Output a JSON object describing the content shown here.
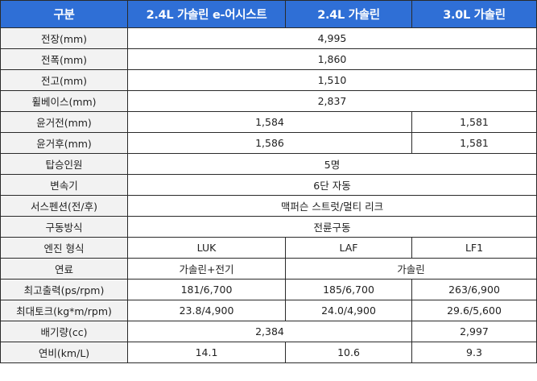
{
  "header": [
    "구분",
    "2.4L 가솔린 e-어시스트",
    "2.4L 가솔린",
    "3.0L 가솔린"
  ],
  "rows": [
    {
      "label": "전장(mm)",
      "cells": [
        {
          "text": "4,995",
          "span": 3
        }
      ]
    },
    {
      "label": "전폭(mm)",
      "cells": [
        {
          "text": "1,860",
          "span": 3
        }
      ]
    },
    {
      "label": "전고(mm)",
      "cells": [
        {
          "text": "1,510",
          "span": 3
        }
      ]
    },
    {
      "label": "휠베이스(mm)",
      "cells": [
        {
          "text": "2,837",
          "span": 3
        }
      ]
    },
    {
      "label": "윤거전(mm)",
      "cells": [
        {
          "text": "1,584",
          "span": 2
        },
        {
          "text": "1,581",
          "span": 1
        }
      ]
    },
    {
      "label": "윤거후(mm)",
      "cells": [
        {
          "text": "1,586",
          "span": 2
        },
        {
          "text": "1,581",
          "span": 1
        }
      ]
    },
    {
      "label": "탑승인원",
      "cells": [
        {
          "text": "5명",
          "span": 3
        }
      ]
    },
    {
      "label": "변속기",
      "cells": [
        {
          "text": "6단 자동",
          "span": 3
        }
      ]
    },
    {
      "label": "서스펜션(전/후)",
      "cells": [
        {
          "text": "맥퍼슨 스트럿/멀티 리크",
          "span": 3
        }
      ]
    },
    {
      "label": "구동방식",
      "cells": [
        {
          "text": "전륜구동",
          "span": 3
        }
      ]
    },
    {
      "label": "엔진 형식",
      "cells": [
        {
          "text": "LUK",
          "span": 1
        },
        {
          "text": "LAF",
          "span": 1
        },
        {
          "text": "LF1",
          "span": 1
        }
      ]
    },
    {
      "label": "연료",
      "cells": [
        {
          "text": "가솔린+전기",
          "span": 1
        },
        {
          "text": "가솔린",
          "span": 2
        }
      ]
    },
    {
      "label": "최고출력(ps/rpm)",
      "cells": [
        {
          "text": "181/6,700",
          "span": 1
        },
        {
          "text": "185/6,700",
          "span": 1
        },
        {
          "text": "263/6,900",
          "span": 1
        }
      ]
    },
    {
      "label": "최대토크(kg*m/rpm)",
      "cells": [
        {
          "text": "23.8/4,900",
          "span": 1
        },
        {
          "text": "24.0/4,900",
          "span": 1
        },
        {
          "text": "29.6/5,600",
          "span": 1
        }
      ]
    },
    {
      "label": "배기량(cc)",
      "cells": [
        {
          "text": "2,384",
          "span": 2
        },
        {
          "text": "2,997",
          "span": 1
        }
      ]
    },
    {
      "label": "연비(km/L)",
      "cells": [
        {
          "text": "14.1",
          "span": 1
        },
        {
          "text": "10.6",
          "span": 1
        },
        {
          "text": "9.3",
          "span": 1
        }
      ]
    }
  ],
  "colors": {
    "header_bg": "#2f6fd6",
    "header_text": "#ffffff",
    "label_bg": "#f2f2f2",
    "border": "#2a2a2a"
  }
}
